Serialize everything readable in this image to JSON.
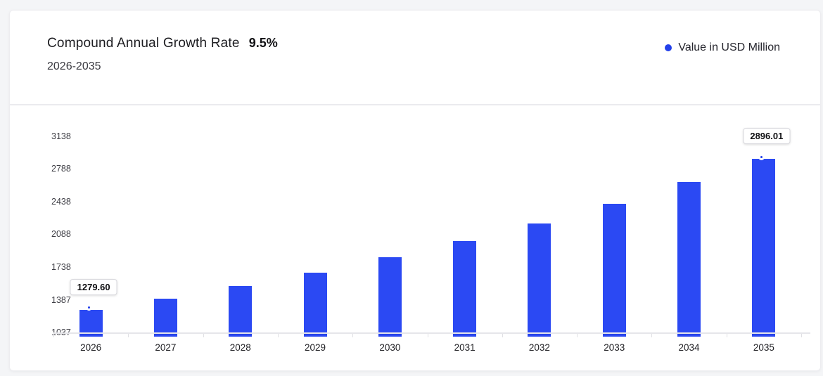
{
  "header": {
    "title": "Compound Annual Growth Rate",
    "cagr_value": "9.5%",
    "period": "2026-2035"
  },
  "legend": {
    "label": "Value in USD Million",
    "marker_color": "#2340ea"
  },
  "chart_data": {
    "type": "bar",
    "title": "Compound Annual Growth Rate 9.5%, 2026-2035",
    "ylabel": "Value in USD Million",
    "xlabel": "",
    "categories": [
      "2026",
      "2027",
      "2028",
      "2029",
      "2030",
      "2031",
      "2032",
      "2033",
      "2034",
      "2035"
    ],
    "values": [
      1279.6,
      1401.16,
      1534.27,
      1680.03,
      1839.63,
      2014.4,
      2205.76,
      2415.31,
      2644.77,
      2896.01
    ],
    "y_ticks": [
      1037,
      1387,
      1738,
      2088,
      2438,
      2788,
      3138
    ],
    "ylim": [
      1037,
      3138
    ],
    "grid": false,
    "legend_position": "top-right",
    "bar_color": "#2b49f3",
    "labeled_points": [
      {
        "index": 0,
        "category": "2026",
        "label": "1279.60"
      },
      {
        "index": 9,
        "category": "2035",
        "label": "2896.01"
      }
    ]
  }
}
